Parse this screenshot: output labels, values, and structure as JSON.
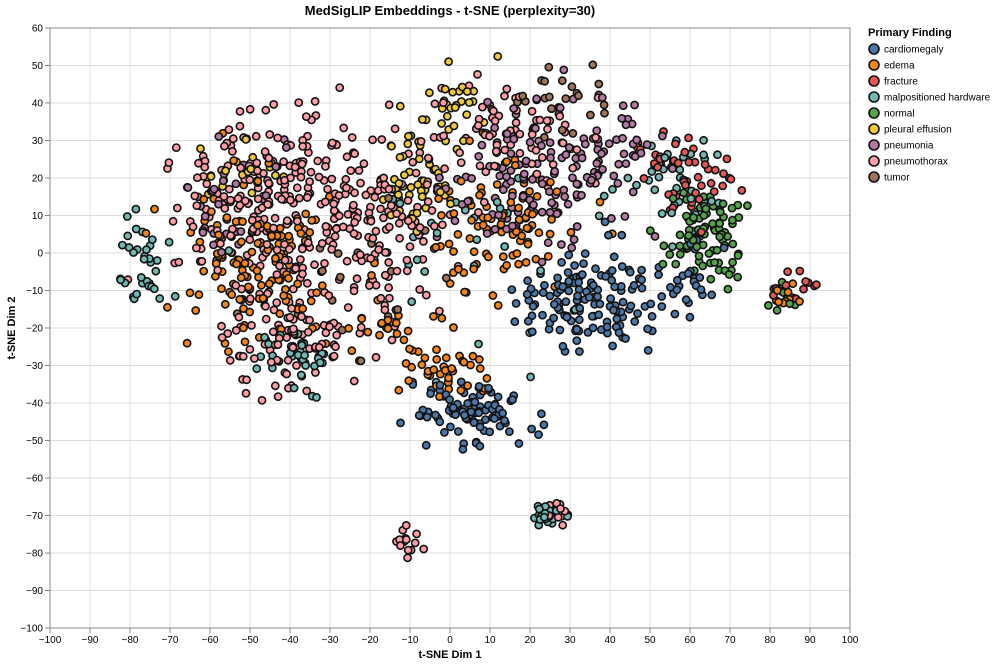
{
  "chart_data": {
    "type": "scatter",
    "title": "MedSigLIP Embeddings - t-SNE (perplexity=30)",
    "xlabel": "t-SNE Dim 1",
    "ylabel": "t-SNE Dim 2",
    "xlim": [
      -100,
      100
    ],
    "ylim": [
      -100,
      60
    ],
    "xticks": [
      -100,
      -90,
      -80,
      -70,
      -60,
      -50,
      -40,
      -30,
      -20,
      -10,
      0,
      10,
      20,
      30,
      40,
      50,
      60,
      70,
      80,
      90,
      100
    ],
    "yticks": [
      -100,
      -90,
      -80,
      -70,
      -60,
      -50,
      -40,
      -30,
      -20,
      -10,
      0,
      10,
      20,
      30,
      40,
      50,
      60
    ],
    "grid": true,
    "legend": {
      "title": "Primary Finding",
      "position": "top-right"
    },
    "series": [
      {
        "name": "cardiomegaly",
        "color": "#4c78a8",
        "clusters": [
          {
            "cx": 35,
            "cy": -12,
            "sx": 9,
            "sy": 7,
            "n": 140
          },
          {
            "cx": 5,
            "cy": -42,
            "sx": 7,
            "sy": 4,
            "n": 90
          },
          {
            "cx": 60,
            "cy": -7,
            "sx": 5,
            "sy": 4,
            "n": 25
          }
        ]
      },
      {
        "name": "edema",
        "color": "#f58518",
        "clusters": [
          {
            "cx": -48,
            "cy": -3,
            "sx": 9,
            "sy": 10,
            "n": 140
          },
          {
            "cx": 12,
            "cy": 8,
            "sx": 9,
            "sy": 8,
            "n": 90
          },
          {
            "cx": 0,
            "cy": -32,
            "sx": 5,
            "sy": 4,
            "n": 40
          },
          {
            "cx": -15,
            "cy": -20,
            "sx": 6,
            "sy": 6,
            "n": 30
          },
          {
            "cx": 85,
            "cy": -12,
            "sx": 3,
            "sy": 2,
            "n": 10
          }
        ]
      },
      {
        "name": "fracture",
        "color": "#e45756",
        "clusters": [
          {
            "cx": 58,
            "cy": 22,
            "sx": 7,
            "sy": 6,
            "n": 50
          },
          {
            "cx": 87,
            "cy": -9,
            "sx": 2.5,
            "sy": 2,
            "n": 12
          }
        ]
      },
      {
        "name": "malpositioned hardware",
        "color": "#72b7b2",
        "clusters": [
          {
            "cx": -78,
            "cy": -2,
            "sx": 4,
            "sy": 7,
            "n": 35
          },
          {
            "cx": -38,
            "cy": -28,
            "sx": 5,
            "sy": 4,
            "n": 35
          },
          {
            "cx": 25,
            "cy": -70,
            "sx": 2.5,
            "sy": 1.5,
            "n": 20
          },
          {
            "cx": 55,
            "cy": 20,
            "sx": 8,
            "sy": 8,
            "n": 40
          },
          {
            "cx": 0,
            "cy": 5,
            "sx": 20,
            "sy": 15,
            "n": 30
          }
        ]
      },
      {
        "name": "normal",
        "color": "#54a24b",
        "clusters": [
          {
            "cx": 64,
            "cy": 5,
            "sx": 5,
            "sy": 6,
            "n": 90
          },
          {
            "cx": 83,
            "cy": -11,
            "sx": 2,
            "sy": 2,
            "n": 10
          }
        ]
      },
      {
        "name": "pleural effusion",
        "color": "#eeca3b",
        "clusters": [
          {
            "cx": -8,
            "cy": 22,
            "sx": 5,
            "sy": 8,
            "n": 55
          },
          {
            "cx": 2,
            "cy": 38,
            "sx": 4,
            "sy": 6,
            "n": 25
          },
          {
            "cx": -50,
            "cy": 22,
            "sx": 6,
            "sy": 5,
            "n": 20
          }
        ]
      },
      {
        "name": "pneumonia",
        "color": "#b279a2",
        "clusters": [
          {
            "cx": 20,
            "cy": 20,
            "sx": 10,
            "sy": 9,
            "n": 110
          },
          {
            "cx": 40,
            "cy": 25,
            "sx": 8,
            "sy": 8,
            "n": 50
          },
          {
            "cx": -55,
            "cy": 10,
            "sx": 8,
            "sy": 8,
            "n": 30
          }
        ]
      },
      {
        "name": "pneumothorax",
        "color": "#ff9da6",
        "clusters": [
          {
            "cx": -45,
            "cy": 15,
            "sx": 12,
            "sy": 12,
            "n": 220
          },
          {
            "cx": -20,
            "cy": 5,
            "sx": 10,
            "sy": 14,
            "n": 140
          },
          {
            "cx": -40,
            "cy": -22,
            "sx": 9,
            "sy": 7,
            "n": 90
          },
          {
            "cx": 15,
            "cy": 32,
            "sx": 12,
            "sy": 8,
            "n": 80
          },
          {
            "cx": -10,
            "cy": -77,
            "sx": 1.5,
            "sy": 2,
            "n": 14
          },
          {
            "cx": 27,
            "cy": -69,
            "sx": 2,
            "sy": 2,
            "n": 12
          }
        ]
      },
      {
        "name": "tumor",
        "color": "#9d755d",
        "clusters": [
          {
            "cx": 28,
            "cy": 40,
            "sx": 8,
            "sy": 6,
            "n": 25
          },
          {
            "cx": -30,
            "cy": -10,
            "sx": 15,
            "sy": 15,
            "n": 20
          }
        ]
      }
    ]
  }
}
